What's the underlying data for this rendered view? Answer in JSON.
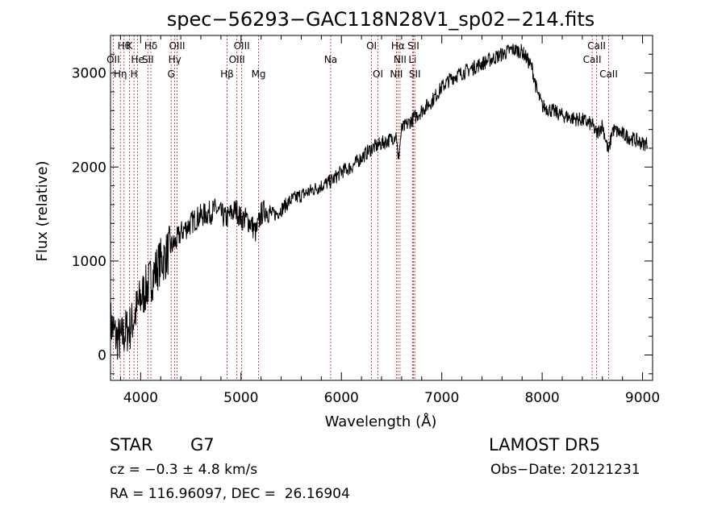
{
  "chart_data": {
    "type": "line",
    "title": "spec−56293−GAC118N28V1_sp02−214.fits",
    "xlabel": "Wavelength (Å)",
    "ylabel": "Flux (relative)",
    "xlim": [
      3700,
      9100
    ],
    "ylim": [
      -270,
      3400
    ],
    "x_ticks": [
      4000,
      5000,
      6000,
      7000,
      8000,
      9000
    ],
    "y_ticks": [
      0,
      1000,
      2000,
      3000
    ],
    "series": [
      {
        "x": [
          3700,
          3750,
          3800,
          3850,
          3900,
          3950,
          4000,
          4050,
          4100,
          4150,
          4200,
          4250,
          4300,
          4350,
          4400,
          4450,
          4500,
          4550,
          4600,
          4650,
          4700,
          4750,
          4800,
          4850,
          4900,
          4950,
          5000,
          5050,
          5100,
          5150,
          5200,
          5250,
          5300,
          5350,
          5400,
          5500,
          5600,
          5700,
          5800,
          5900,
          6000,
          6100,
          6200,
          6300,
          6400,
          6500,
          6550,
          6563,
          6600,
          6700,
          6800,
          6900,
          7000,
          7100,
          7200,
          7300,
          7400,
          7500,
          7600,
          7700,
          7800,
          7850,
          7900,
          7950,
          8000,
          8100,
          8200,
          8300,
          8400,
          8500,
          8542,
          8600,
          8662,
          8700,
          8800,
          8900,
          9000,
          9050
        ],
        "y": [
          350,
          200,
          150,
          250,
          300,
          450,
          600,
          700,
          800,
          900,
          1000,
          1050,
          1150,
          1200,
          1300,
          1350,
          1400,
          1450,
          1480,
          1500,
          1520,
          1550,
          1500,
          1450,
          1500,
          1550,
          1450,
          1450,
          1400,
          1300,
          1500,
          1550,
          1500,
          1500,
          1550,
          1650,
          1700,
          1750,
          1800,
          1850,
          1950,
          2000,
          2100,
          2200,
          2250,
          2300,
          2350,
          2050,
          2400,
          2500,
          2600,
          2700,
          2850,
          2950,
          3000,
          3050,
          3100,
          3150,
          3200,
          3250,
          3230,
          3150,
          3050,
          2800,
          2650,
          2600,
          2550,
          2520,
          2500,
          2450,
          2350,
          2450,
          2150,
          2400,
          2350,
          2300,
          2250,
          2250
        ]
      }
    ],
    "lines": [
      {
        "wave": 3835,
        "label": "Hθ",
        "row": 0
      },
      {
        "wave": 3889,
        "label": "K",
        "row": 0
      },
      {
        "wave": 4102,
        "label": "Hδ",
        "row": 0
      },
      {
        "wave": 4363,
        "label": "OIII",
        "row": 0
      },
      {
        "wave": 5007,
        "label": "OIII",
        "row": 0
      },
      {
        "wave": 6300,
        "label": "OI",
        "row": 0
      },
      {
        "wave": 6563,
        "label": "Hα",
        "row": 0
      },
      {
        "wave": 6717,
        "label": "SII",
        "row": 0
      },
      {
        "wave": 8542,
        "label": "CaII",
        "row": 0
      },
      {
        "wave": 3727,
        "label": "OII",
        "row": 1
      },
      {
        "wave": 3970,
        "label": "He",
        "row": 1
      },
      {
        "wave": 4072,
        "label": "SII",
        "row": 1
      },
      {
        "wave": 4340,
        "label": "Hγ",
        "row": 1
      },
      {
        "wave": 4959,
        "label": "OIII",
        "row": 1
      },
      {
        "wave": 5893,
        "label": "Na",
        "row": 1
      },
      {
        "wave": 6584,
        "label": "NII",
        "row": 1
      },
      {
        "wave": 6708,
        "label": "Li",
        "row": 1
      },
      {
        "wave": 8498,
        "label": "CaII",
        "row": 1
      },
      {
        "wave": 3798,
        "label": "Hη",
        "row": 2
      },
      {
        "wave": 3934,
        "label": "H",
        "row": 2
      },
      {
        "wave": 4304,
        "label": "G",
        "row": 2
      },
      {
        "wave": 4861,
        "label": "Hβ",
        "row": 2
      },
      {
        "wave": 5175,
        "label": "Mg",
        "row": 2
      },
      {
        "wave": 6364,
        "label": "OI",
        "row": 2
      },
      {
        "wave": 6548,
        "label": "NII",
        "row": 2
      },
      {
        "wave": 6731,
        "label": "SII",
        "row": 2
      },
      {
        "wave": 8662,
        "label": "CaII",
        "row": 2
      }
    ]
  },
  "info": {
    "object_class": "STAR",
    "subclass": "G7",
    "velocity": "cz = −0.3 ± 4.8 km/s",
    "coords": "RA = 116.96097, DEC =  26.16904",
    "survey": "LAMOST DR5",
    "obs_date": "Obs−Date: 20121231"
  }
}
